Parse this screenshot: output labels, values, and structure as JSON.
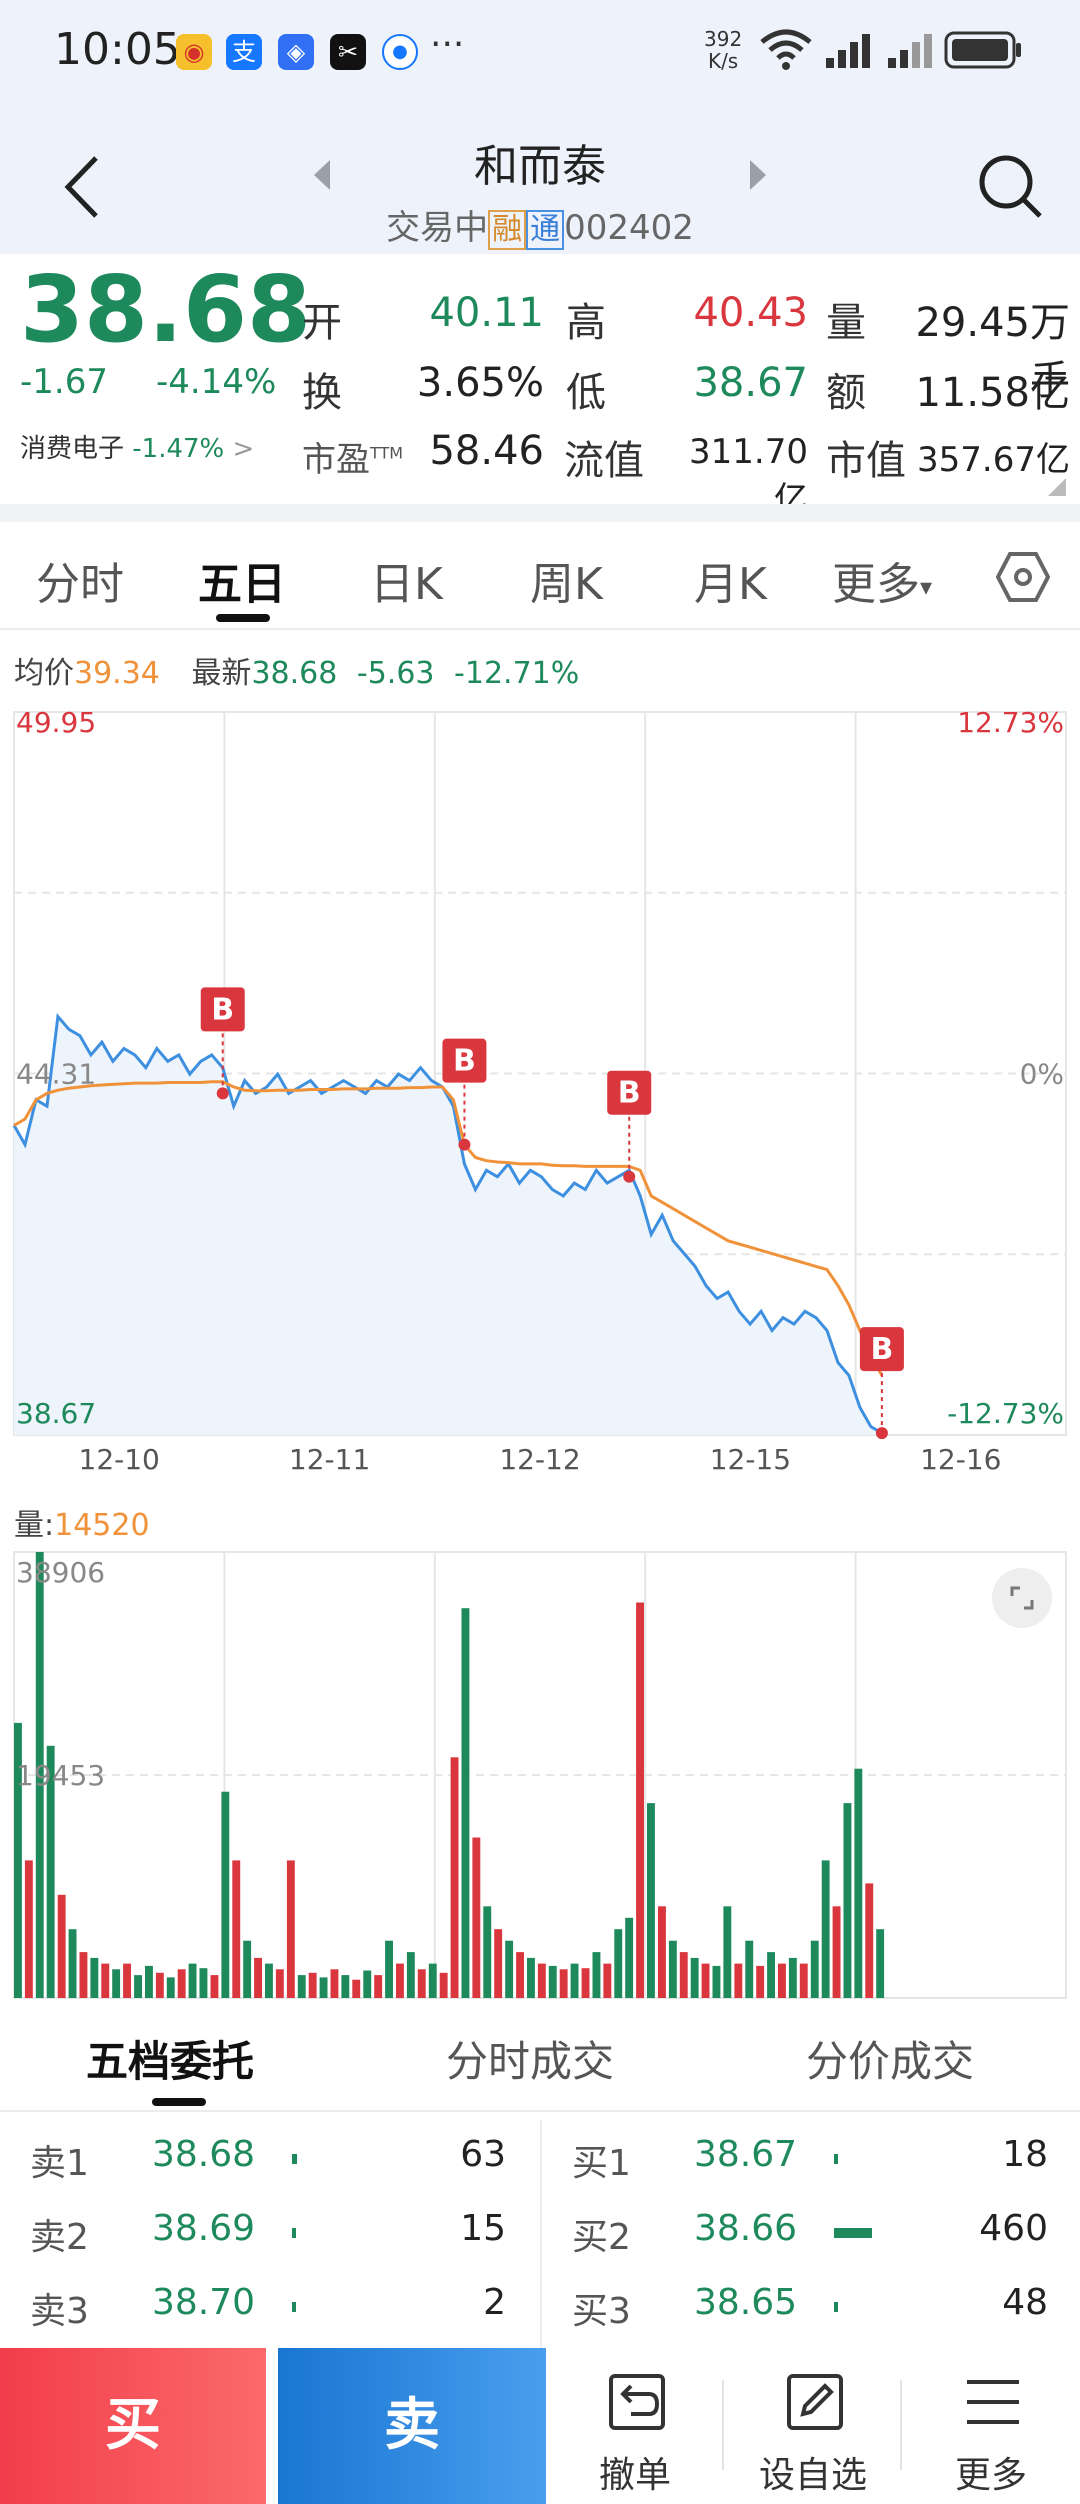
{
  "status_bar": {
    "time": "10:05",
    "app_icons": [
      "weibo-icon",
      "alipay-icon",
      "app-icon",
      "capcut-icon",
      "app-icon-2"
    ],
    "more": "···",
    "speed_value": "392",
    "speed_unit": "K/s",
    "battery_icon": "battery-icon"
  },
  "header": {
    "back_icon": "back-arrow-icon",
    "prev_icon": "prev-stock-icon",
    "next_icon": "next-stock-icon",
    "stock_name": "和而泰",
    "status": "交易中",
    "tag_rong": "融",
    "tag_tong": "通",
    "code": "002402",
    "search_icon": "search-icon"
  },
  "quote": {
    "price": "38.68",
    "change": "-1.67",
    "change_pct": "-4.14%",
    "sector_name": "消费电子",
    "sector_pct": "-1.47%",
    "sector_arrow": ">",
    "open_label": "开",
    "open": "40.11",
    "high_label": "高",
    "high": "40.43",
    "volume_label": "量",
    "volume": "29.45万手",
    "turnover_label": "换",
    "turnover": "3.65%",
    "low_label": "低",
    "low": "38.67",
    "amount_label": "额",
    "amount": "11.58亿",
    "pe_label": "市盈",
    "pe_super": "TTM",
    "pe": "58.46",
    "float_cap_label": "流值",
    "float_cap": "311.70亿",
    "market_cap_label": "市值",
    "market_cap": "357.67亿"
  },
  "tabs": {
    "items": [
      "分时",
      "五日",
      "日K",
      "周K",
      "月K",
      "更多"
    ],
    "active_index": 1,
    "more_caret": "▾",
    "settings_icon": "hexagon-settings-icon"
  },
  "chart_info": {
    "avg_label": "均价",
    "avg_value": "39.34",
    "latest_label": "最新",
    "latest_value": "38.68",
    "latest_change": "-5.63",
    "latest_pct": "-12.71%"
  },
  "chart_data": {
    "type": "line",
    "x_labels": [
      "12-10",
      "12-11",
      "12-12",
      "12-15",
      "12-16"
    ],
    "y_left_ticks": [
      "49.95",
      "44.31",
      "38.67"
    ],
    "y_right_ticks": [
      "12.73%",
      "0%",
      "-12.73%"
    ],
    "ylim": [
      38.67,
      49.95
    ],
    "series": [
      {
        "color": "#3d8fe0",
        "values": [
          43.5,
          43.2,
          43.9,
          43.8,
          45.2,
          45.0,
          44.9,
          44.6,
          44.8,
          44.5,
          44.7,
          44.6,
          44.4,
          44.7,
          44.5,
          44.6,
          44.3,
          44.5,
          44.6,
          44.4,
          43.8,
          44.2,
          44.0,
          44.1,
          44.3,
          44.0,
          44.1,
          44.2,
          44.0,
          44.1,
          44.2,
          44.1,
          44.0,
          44.2,
          44.1,
          44.3,
          44.2,
          44.4,
          44.2,
          44.1,
          43.8,
          42.9,
          42.5,
          42.8,
          42.7,
          42.9,
          42.6,
          42.8,
          42.7,
          42.5,
          42.4,
          42.6,
          42.5,
          42.8,
          42.6,
          42.7,
          42.8,
          42.4,
          41.8,
          42.1,
          41.7,
          41.5,
          41.3,
          41.0,
          40.8,
          40.9,
          40.6,
          40.4,
          40.6,
          40.3,
          40.5,
          40.4,
          40.6,
          40.5,
          40.3,
          39.8,
          39.6,
          39.1,
          38.8,
          38.7
        ]
      },
      {
        "color": "#f0923a",
        "values": [
          43.5,
          43.6,
          43.9,
          44.0,
          44.05,
          44.08,
          44.1,
          44.12,
          44.13,
          44.14,
          44.15,
          44.16,
          44.16,
          44.16,
          44.17,
          44.17,
          44.17,
          44.17,
          44.18,
          44.18,
          44.1,
          44.05,
          44.04,
          44.04,
          44.05,
          44.05,
          44.05,
          44.06,
          44.06,
          44.06,
          44.07,
          44.07,
          44.07,
          44.08,
          44.08,
          44.08,
          44.09,
          44.09,
          44.1,
          44.1,
          43.9,
          43.2,
          43.0,
          42.95,
          42.93,
          42.92,
          42.9,
          42.9,
          42.9,
          42.88,
          42.87,
          42.87,
          42.86,
          42.86,
          42.86,
          42.86,
          42.86,
          42.8,
          42.4,
          42.3,
          42.2,
          42.1,
          42.0,
          41.9,
          41.8,
          41.7,
          41.65,
          41.6,
          41.55,
          41.5,
          41.45,
          41.4,
          41.35,
          41.3,
          41.25,
          41.0,
          40.7,
          40.3,
          39.9,
          39.6
        ]
      }
    ],
    "markers": [
      {
        "label": "B",
        "index": 19,
        "value": 44.0
      },
      {
        "label": "B",
        "index": 41,
        "value": 43.2
      },
      {
        "label": "B",
        "index": 56,
        "value": 42.7
      },
      {
        "label": "B",
        "index": 79,
        "value": 38.7
      }
    ]
  },
  "volume_chart": {
    "label": "量:",
    "value": "14520",
    "y_ticks": [
      "38906",
      "19453"
    ],
    "expand_icon": "expand-icon",
    "type": "bar",
    "ylim": [
      0,
      38906
    ],
    "bars": [
      {
        "value": 24000,
        "color": "#1e8a5c"
      },
      {
        "value": 12000,
        "color": "#d9363e"
      },
      {
        "value": 38906,
        "color": "#1e8a5c"
      },
      {
        "value": 22000,
        "color": "#1e8a5c"
      },
      {
        "value": 9000,
        "color": "#d9363e"
      },
      {
        "value": 6000,
        "color": "#1e8a5c"
      },
      {
        "value": 4000,
        "color": "#d9363e"
      },
      {
        "value": 3500,
        "color": "#1e8a5c"
      },
      {
        "value": 3000,
        "color": "#d9363e"
      },
      {
        "value": 2500,
        "color": "#1e8a5c"
      },
      {
        "value": 3000,
        "color": "#d9363e"
      },
      {
        "value": 2000,
        "color": "#1e8a5c"
      },
      {
        "value": 2800,
        "color": "#1e8a5c"
      },
      {
        "value": 2200,
        "color": "#d9363e"
      },
      {
        "value": 1800,
        "color": "#1e8a5c"
      },
      {
        "value": 2500,
        "color": "#d9363e"
      },
      {
        "value": 3000,
        "color": "#1e8a5c"
      },
      {
        "value": 2600,
        "color": "#1e8a5c"
      },
      {
        "value": 2000,
        "color": "#d9363e"
      },
      {
        "value": 18000,
        "color": "#1e8a5c"
      },
      {
        "value": 12000,
        "color": "#d9363e"
      },
      {
        "value": 5000,
        "color": "#1e8a5c"
      },
      {
        "value": 3500,
        "color": "#d9363e"
      },
      {
        "value": 3000,
        "color": "#1e8a5c"
      },
      {
        "value": 2500,
        "color": "#d9363e"
      },
      {
        "value": 12000,
        "color": "#d9363e"
      },
      {
        "value": 2000,
        "color": "#1e8a5c"
      },
      {
        "value": 2200,
        "color": "#d9363e"
      },
      {
        "value": 1800,
        "color": "#1e8a5c"
      },
      {
        "value": 2500,
        "color": "#d9363e"
      },
      {
        "value": 2000,
        "color": "#1e8a5c"
      },
      {
        "value": 1600,
        "color": "#d9363e"
      },
      {
        "value": 2400,
        "color": "#1e8a5c"
      },
      {
        "value": 2000,
        "color": "#d9363e"
      },
      {
        "value": 5000,
        "color": "#1e8a5c"
      },
      {
        "value": 3000,
        "color": "#d9363e"
      },
      {
        "value": 4000,
        "color": "#1e8a5c"
      },
      {
        "value": 2500,
        "color": "#d9363e"
      },
      {
        "value": 3000,
        "color": "#1e8a5c"
      },
      {
        "value": 2200,
        "color": "#d9363e"
      },
      {
        "value": 21000,
        "color": "#d9363e"
      },
      {
        "value": 34000,
        "color": "#1e8a5c"
      },
      {
        "value": 14000,
        "color": "#d9363e"
      },
      {
        "value": 8000,
        "color": "#1e8a5c"
      },
      {
        "value": 6000,
        "color": "#d9363e"
      },
      {
        "value": 5000,
        "color": "#1e8a5c"
      },
      {
        "value": 4000,
        "color": "#d9363e"
      },
      {
        "value": 3500,
        "color": "#1e8a5c"
      },
      {
        "value": 3000,
        "color": "#d9363e"
      },
      {
        "value": 2800,
        "color": "#1e8a5c"
      },
      {
        "value": 2500,
        "color": "#d9363e"
      },
      {
        "value": 3000,
        "color": "#1e8a5c"
      },
      {
        "value": 2600,
        "color": "#d9363e"
      },
      {
        "value": 4000,
        "color": "#1e8a5c"
      },
      {
        "value": 3000,
        "color": "#d9363e"
      },
      {
        "value": 6000,
        "color": "#1e8a5c"
      },
      {
        "value": 7000,
        "color": "#1e8a5c"
      },
      {
        "value": 34500,
        "color": "#d9363e"
      },
      {
        "value": 17000,
        "color": "#1e8a5c"
      },
      {
        "value": 8000,
        "color": "#d9363e"
      },
      {
        "value": 5000,
        "color": "#1e8a5c"
      },
      {
        "value": 4000,
        "color": "#d9363e"
      },
      {
        "value": 3500,
        "color": "#1e8a5c"
      },
      {
        "value": 3000,
        "color": "#d9363e"
      },
      {
        "value": 2800,
        "color": "#1e8a5c"
      },
      {
        "value": 8000,
        "color": "#1e8a5c"
      },
      {
        "value": 3000,
        "color": "#d9363e"
      },
      {
        "value": 5000,
        "color": "#1e8a5c"
      },
      {
        "value": 2800,
        "color": "#d9363e"
      },
      {
        "value": 4000,
        "color": "#1e8a5c"
      },
      {
        "value": 3000,
        "color": "#d9363e"
      },
      {
        "value": 3500,
        "color": "#1e8a5c"
      },
      {
        "value": 3000,
        "color": "#d9363e"
      },
      {
        "value": 5000,
        "color": "#1e8a5c"
      },
      {
        "value": 12000,
        "color": "#1e8a5c"
      },
      {
        "value": 8000,
        "color": "#d9363e"
      },
      {
        "value": 17000,
        "color": "#1e8a5c"
      },
      {
        "value": 20000,
        "color": "#1e8a5c"
      },
      {
        "value": 10000,
        "color": "#d9363e"
      },
      {
        "value": 6000,
        "color": "#1e8a5c"
      }
    ]
  },
  "order_book": {
    "tabs": [
      "五档委托",
      "分时成交",
      "分价成交"
    ],
    "active_index": 0,
    "sell": [
      {
        "label": "卖1",
        "price": "38.68",
        "qty": "63",
        "fraction": 0.014
      },
      {
        "label": "卖2",
        "price": "38.69",
        "qty": "15",
        "fraction": 0.003
      },
      {
        "label": "卖3",
        "price": "38.70",
        "qty": "2",
        "fraction": 0.001
      }
    ],
    "buy": [
      {
        "label": "买1",
        "price": "38.67",
        "qty": "18",
        "fraction": 0.004
      },
      {
        "label": "买2",
        "price": "38.66",
        "qty": "460",
        "fraction": 0.1
      },
      {
        "label": "买3",
        "price": "38.65",
        "qty": "48",
        "fraction": 0.01
      }
    ]
  },
  "bottom_bar": {
    "buy": "买",
    "sell": "卖",
    "cancel_label": "撤单",
    "cancel_icon": "undo-icon",
    "watch_label": "设自选",
    "watch_icon": "edit-icon",
    "more_label": "更多",
    "more_icon": "menu-icon"
  },
  "colors": {
    "down_green": "#1e8a5c",
    "up_red": "#d9363e",
    "price_line": "#3d8fe0",
    "avg_line": "#f0923a",
    "buy_red": "#f23d4b",
    "sell_blue": "#1976d2"
  }
}
